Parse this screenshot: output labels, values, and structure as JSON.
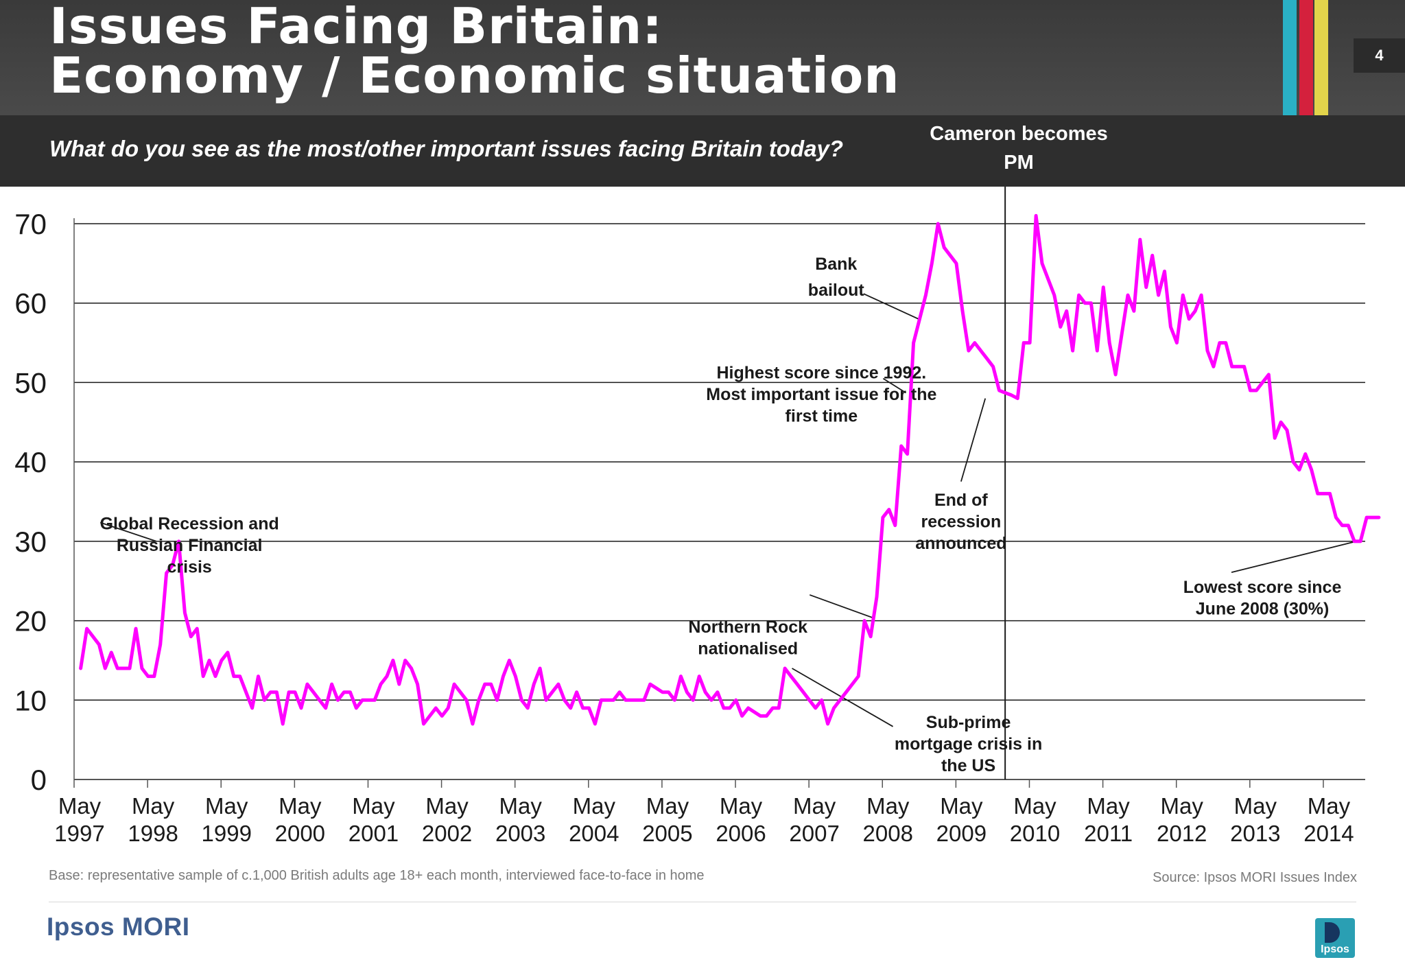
{
  "header": {
    "title_line1": "Issues Facing Britain:",
    "title_line2": "Economy / Economic situation",
    "page_number": "4",
    "stripe_colors": [
      "#2ab0c5",
      "#d4213d",
      "#e2d44b"
    ],
    "question": "What do you see as the most/other important issues facing Britain today?"
  },
  "chart_data": {
    "type": "line",
    "title": "Issues Facing Britain: Economy / Economic situation",
    "xlabel": "",
    "ylabel": "",
    "ylim": [
      0,
      70
    ],
    "yticks": [
      0,
      10,
      20,
      30,
      40,
      50,
      60,
      70
    ],
    "grid": true,
    "x_start": 1997.33,
    "x_end": 2014.9,
    "x_ticks": [
      {
        "year": 1997,
        "l1": "May",
        "l2": "1997"
      },
      {
        "year": 1998,
        "l1": "May",
        "l2": "1998"
      },
      {
        "year": 1999,
        "l1": "May",
        "l2": "1999"
      },
      {
        "year": 2000,
        "l1": "May",
        "l2": "2000"
      },
      {
        "year": 2001,
        "l1": "May",
        "l2": "2001"
      },
      {
        "year": 2002,
        "l1": "May",
        "l2": "2002"
      },
      {
        "year": 2003,
        "l1": "May",
        "l2": "2003"
      },
      {
        "year": 2004,
        "l1": "May",
        "l2": "2004"
      },
      {
        "year": 2005,
        "l1": "May",
        "l2": "2005"
      },
      {
        "year": 2006,
        "l1": "May",
        "l2": "2006"
      },
      {
        "year": 2007,
        "l1": "May",
        "l2": "2007"
      },
      {
        "year": 2008,
        "l1": "May",
        "l2": "2008"
      },
      {
        "year": 2009,
        "l1": "May",
        "l2": "2009"
      },
      {
        "year": 2010,
        "l1": "May",
        "l2": "2010"
      },
      {
        "year": 2011,
        "l1": "May",
        "l2": "2011"
      },
      {
        "year": 2012,
        "l1": "May",
        "l2": "2012"
      },
      {
        "year": 2013,
        "l1": "May",
        "l2": "2013"
      },
      {
        "year": 2014,
        "l1": "May",
        "l2": "2014"
      }
    ],
    "series": [
      {
        "name": "Economy / Economic situation",
        "color": "#ff00ff",
        "start": 1997.42,
        "step": 0.08333,
        "values": [
          14,
          19,
          18,
          17,
          14,
          16,
          14,
          14,
          14,
          19,
          14,
          13,
          13,
          17,
          26,
          27,
          30,
          21,
          18,
          19,
          13,
          15,
          13,
          15,
          16,
          13,
          13,
          11,
          9,
          13,
          10,
          11,
          11,
          7,
          11,
          11,
          9,
          12,
          11,
          10,
          9,
          12,
          10,
          11,
          11,
          9,
          10,
          10,
          10,
          12,
          13,
          15,
          12,
          15,
          14,
          12,
          7,
          8,
          9,
          8,
          9,
          12,
          11,
          10,
          7,
          10,
          12,
          12,
          10,
          13,
          15,
          13,
          10,
          9,
          12,
          14,
          10,
          11,
          12,
          10,
          9,
          11,
          9,
          9,
          7,
          10,
          10,
          10,
          11,
          10,
          10,
          10,
          10,
          12,
          11.5,
          11,
          11,
          10,
          13,
          11,
          10,
          13,
          11,
          10,
          11,
          9,
          9,
          10,
          8,
          9,
          8.5,
          8,
          8,
          9,
          9,
          14,
          13,
          12,
          11,
          10,
          9,
          10,
          7,
          9,
          10,
          11,
          12,
          13,
          20,
          18,
          23,
          33,
          34,
          32,
          42,
          41,
          55,
          58,
          61,
          65,
          70,
          67,
          66,
          65,
          59,
          54,
          55,
          54,
          53,
          52,
          49,
          48.7,
          48.4,
          48,
          55,
          55,
          71,
          65,
          63,
          61,
          57,
          59,
          54,
          61,
          60,
          60,
          54,
          62,
          55,
          51,
          56,
          61,
          59,
          68,
          62,
          66,
          61,
          64,
          57,
          55,
          61,
          58,
          59,
          61,
          54,
          52,
          55,
          55,
          52,
          52,
          52,
          49,
          49,
          50,
          51,
          43,
          45,
          44,
          40,
          39,
          41,
          39,
          36,
          36,
          36,
          33,
          32,
          32,
          30,
          30,
          33,
          33,
          33
        ]
      }
    ],
    "vline_year": 2010,
    "annotations": [
      {
        "id": "global",
        "lines": [
          "Global Recession and",
          "Russian Financial",
          "crisis"
        ],
        "text_at": [
          1998.9,
          31.5
        ],
        "pointer_to": [
          1998.45,
          30
        ],
        "pointer_from": [
          1997.79,
          0
        ]
      },
      {
        "id": "northern",
        "lines": [
          "Northern Rock",
          "nationalised"
        ],
        "text_at": [
          2006.5,
          18.5
        ],
        "pointer_to": [
          2008.22,
          20.3
        ],
        "pointer_from": [
          2006.98,
          0
        ]
      },
      {
        "id": "bank",
        "lines": [
          "Bank",
          "bailout"
        ],
        "text_at": [
          2007.7,
          64.2
        ],
        "pointer_to": [
          2008.82,
          58
        ],
        "pointer_from": [
          2008.25,
          0
        ]
      },
      {
        "id": "highest",
        "lines": [
          "Highest score since 1992.",
          "Most important issue for the",
          "first time"
        ],
        "text_at": [
          2007.5,
          50.5
        ],
        "pointer_to": [
          2008.65,
          48.7
        ],
        "pointer_from": [
          2007.9,
          0
        ]
      },
      {
        "id": "recession",
        "lines": [
          "End of",
          "recession",
          "announced"
        ],
        "text_at": [
          2009.4,
          34.5
        ],
        "pointer_to": [
          2009.73,
          48
        ],
        "pointer_from": [
          2009.25,
          0
        ]
      },
      {
        "id": "subprime",
        "lines": [
          "Sub-prime",
          "mortgage crisis in",
          "the US"
        ],
        "text_at": [
          2009.5,
          6.5
        ],
        "pointer_to": [
          2007.1,
          14
        ],
        "pointer_from": [
          2008.55,
          0
        ]
      },
      {
        "id": "lowest",
        "lines": [
          "Lowest score since",
          "June 2008 (30%)"
        ],
        "text_at": [
          2013.5,
          23.5
        ],
        "pointer_to": [
          2014.78,
          30
        ],
        "pointer_from": [
          2013.15,
          0
        ]
      }
    ]
  },
  "cameron_label": "Cameron becomes PM",
  "footer": {
    "base": "Base: representative sample of c.1,000 British adults age 18+ each month, interviewed face-to-face in home",
    "source": "Source: Ipsos MORI Issues Index",
    "brand": "Ipsos MORI",
    "logo_text": "Ipsos"
  }
}
